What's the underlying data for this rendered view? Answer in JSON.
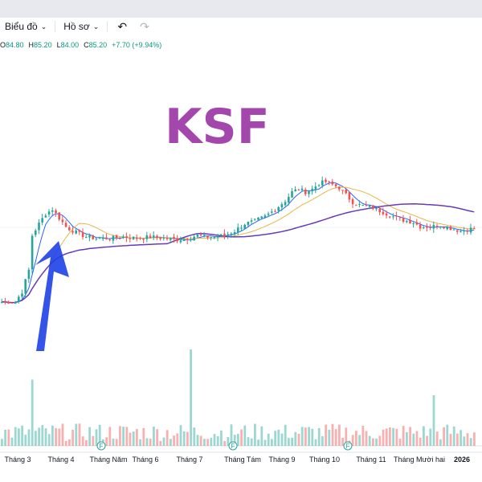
{
  "toolbar": {
    "chart_label": "Biểu đồ",
    "profile_label": "Hồ sơ",
    "undo_icon": "undo-icon",
    "redo_icon": "redo-icon"
  },
  "legend": {
    "open_label": "O",
    "open": "84.80",
    "high_label": "H",
    "high": "85.20",
    "low_label": "L",
    "low": "84.00",
    "close_label": "C",
    "close": "85.20",
    "change": "+7.70 (+9.94%)"
  },
  "colors": {
    "up": "#26a69a",
    "down": "#ef5350",
    "ma_short": "#2962ff",
    "ma_mid": "#e8b64a",
    "ma_long": "#673ab7",
    "arrow": "#1e40e6",
    "title": "#a347ad"
  },
  "chart_data": {
    "type": "candlestick",
    "overlay_text": "KSF",
    "x_labels": [
      "Tháng 3",
      "Tháng 4",
      "Tháng Năm",
      "Tháng 6",
      "Tháng 7",
      "Tháng Tám",
      "Tháng 9",
      "Tháng 10",
      "Tháng 11",
      "Tháng Mười hai",
      "2026"
    ],
    "bold_x_labels": [
      "2026"
    ],
    "event_markers": [
      "F",
      "F",
      "F"
    ],
    "close_path": [
      [
        0,
        34
      ],
      [
        4,
        34
      ],
      [
        6,
        41
      ],
      [
        8,
        56
      ],
      [
        9,
        80
      ],
      [
        11,
        88
      ],
      [
        13,
        95
      ],
      [
        15,
        98
      ],
      [
        17,
        92
      ],
      [
        19,
        86
      ],
      [
        22,
        82
      ],
      [
        25,
        79
      ],
      [
        28,
        78
      ],
      [
        32,
        78
      ],
      [
        36,
        79
      ],
      [
        40,
        78
      ],
      [
        44,
        79
      ],
      [
        48,
        78
      ],
      [
        52,
        77
      ],
      [
        55,
        78
      ],
      [
        58,
        80
      ],
      [
        60,
        79
      ],
      [
        63,
        79
      ],
      [
        66,
        80
      ],
      [
        69,
        83
      ],
      [
        72,
        88
      ],
      [
        75,
        90
      ],
      [
        78,
        93
      ],
      [
        81,
        98
      ],
      [
        84,
        104
      ],
      [
        86,
        110
      ],
      [
        88,
        112
      ],
      [
        90,
        110
      ],
      [
        92,
        112
      ],
      [
        94,
        116
      ],
      [
        96,
        117
      ],
      [
        98,
        115
      ],
      [
        100,
        113
      ],
      [
        102,
        108
      ],
      [
        104,
        103
      ],
      [
        106,
        101
      ],
      [
        108,
        100
      ],
      [
        110,
        99
      ],
      [
        112,
        97
      ],
      [
        114,
        95
      ],
      [
        116,
        93
      ],
      [
        118,
        91
      ],
      [
        120,
        90
      ],
      [
        122,
        89
      ],
      [
        124,
        86
      ],
      [
        127,
        86
      ],
      [
        130,
        87
      ],
      [
        133,
        85
      ],
      [
        136,
        83
      ],
      [
        140,
        85
      ]
    ],
    "volume_spikes": [
      [
        9,
        0.55
      ],
      [
        56,
        0.8
      ],
      [
        128,
        0.42
      ]
    ]
  }
}
